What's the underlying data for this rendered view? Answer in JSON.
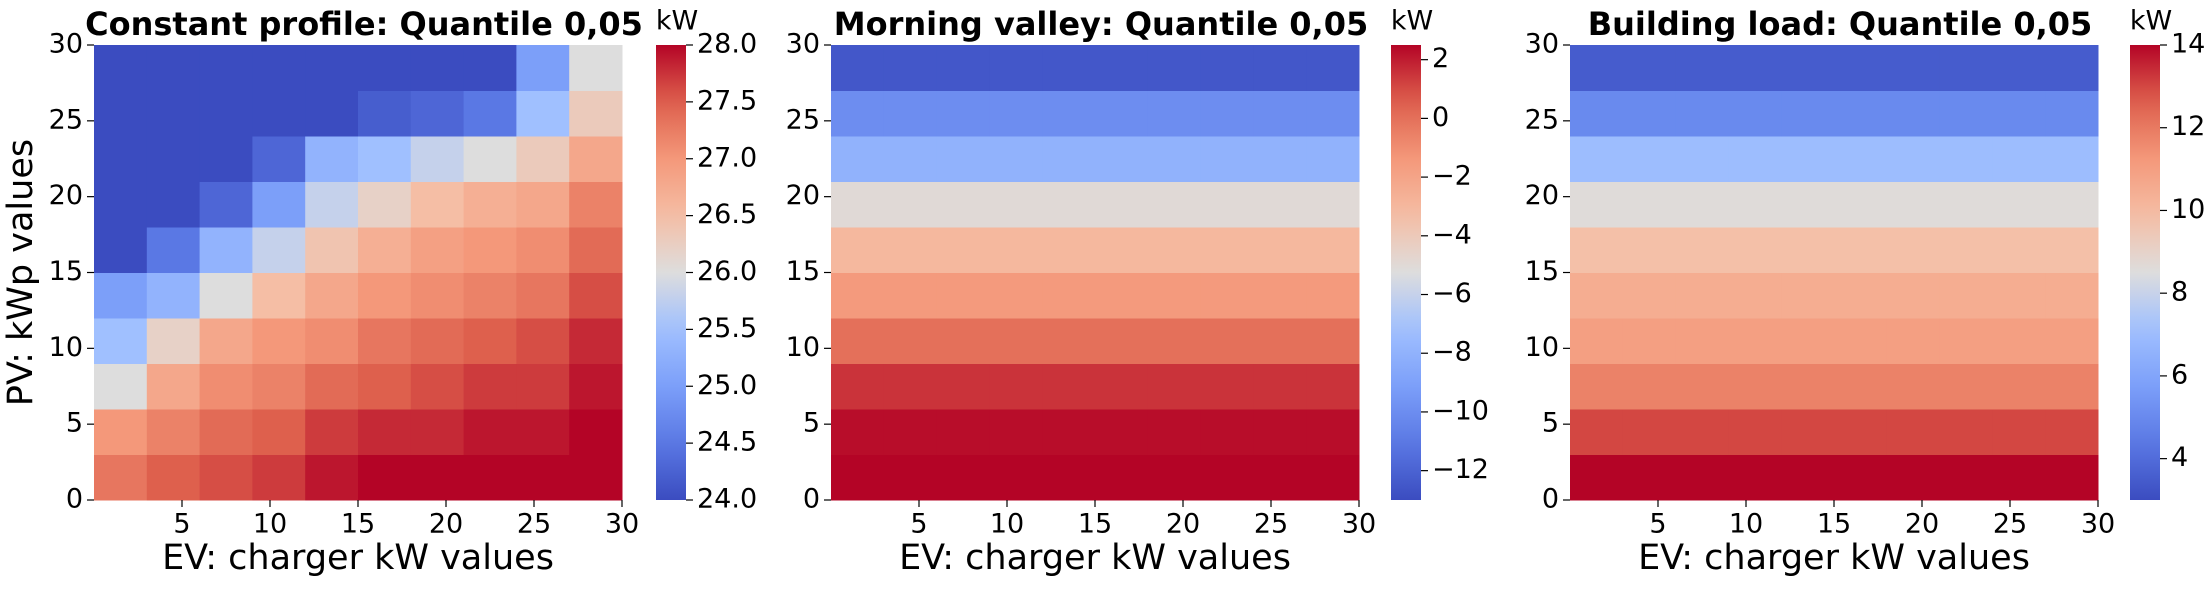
{
  "chart_data": [
    {
      "type": "heatmap",
      "title": "Constant profile: Quantile 0,05",
      "xlabel": "EV: charger kW values",
      "ylabel": "PV: kWp values",
      "cbar_label": "kW",
      "cmap": "coolwarm",
      "xlim": [
        0,
        30
      ],
      "xticks": [
        5,
        10,
        15,
        20,
        25,
        30
      ],
      "ylim": [
        0,
        30
      ],
      "yticks": [
        0,
        5,
        10,
        15,
        20,
        25,
        30
      ],
      "xbins": [
        0,
        3,
        6,
        9,
        12,
        15,
        18,
        21,
        24,
        27,
        30
      ],
      "ybins": [
        0,
        3,
        6,
        9,
        12,
        15,
        18,
        21,
        24,
        27,
        30
      ],
      "clim": [
        24,
        28
      ],
      "cticks": [
        {
          "value": 24,
          "label": "24.0"
        },
        24.5,
        {
          "value": 25,
          "label": "25.0"
        },
        25.5,
        {
          "value": 26,
          "label": "26.0"
        },
        26.5,
        {
          "value": 27,
          "label": "27.0"
        },
        27.5,
        {
          "value": 28,
          "label": "28.0"
        }
      ],
      "z": [
        [
          27.3,
          27.5,
          27.6,
          27.7,
          27.9,
          28,
          28,
          28,
          28,
          28
        ],
        [
          27.0,
          27.2,
          27.4,
          27.5,
          27.7,
          27.8,
          27.8,
          27.9,
          27.9,
          28
        ],
        [
          26.0,
          26.8,
          27.1,
          27.2,
          27.4,
          27.5,
          27.6,
          27.7,
          27.7,
          27.9
        ],
        [
          25.5,
          26.2,
          26.8,
          27.0,
          27.1,
          27.3,
          27.4,
          27.5,
          27.6,
          27.8
        ],
        [
          25.0,
          25.3,
          26.0,
          26.5,
          26.8,
          27.0,
          27.1,
          27.2,
          27.3,
          27.6
        ],
        [
          24.0,
          24.5,
          25.3,
          25.8,
          26.4,
          26.7,
          26.9,
          27.0,
          27.1,
          27.4
        ],
        [
          24,
          24,
          24.3,
          25.0,
          25.8,
          26.2,
          26.5,
          26.7,
          26.8,
          27.2
        ],
        [
          24,
          24,
          24,
          24.3,
          25.3,
          25.5,
          25.8,
          26.0,
          26.3,
          26.8
        ],
        [
          24,
          24,
          24,
          24,
          24,
          24.2,
          24.3,
          24.5,
          25.5,
          26.3
        ],
        [
          24,
          24,
          24,
          24,
          24,
          24,
          24,
          24,
          25.0,
          26.0
        ]
      ]
    },
    {
      "type": "heatmap",
      "title": "Morning valley: Quantile 0,05",
      "xlabel": "EV: charger kW values",
      "cbar_label": "kW",
      "cmap": "coolwarm",
      "xlim": [
        0,
        30
      ],
      "xticks": [
        5,
        10,
        15,
        20,
        25,
        30
      ],
      "ylim": [
        0,
        30
      ],
      "yticks": [
        0,
        5,
        10,
        15,
        20,
        25,
        30
      ],
      "xbins": [
        0,
        3,
        6,
        9,
        12,
        15,
        18,
        21,
        24,
        27,
        30
      ],
      "ybins": [
        0,
        3,
        6,
        9,
        12,
        15,
        18,
        21,
        24,
        27,
        30
      ],
      "clim": [
        -13,
        2.5
      ],
      "cticks": [
        {
          "value": -12,
          "label": "−12"
        },
        {
          "value": -10,
          "label": "−10"
        },
        {
          "value": -8,
          "label": "−8"
        },
        {
          "value": -6,
          "label": "−6"
        },
        {
          "value": -4,
          "label": "−4"
        },
        {
          "value": -2,
          "label": "−2"
        },
        0,
        2
      ],
      "z": [
        [
          2.5,
          2.5,
          2.5,
          2.5,
          2.5,
          2.5,
          2.5,
          2.5,
          2.5,
          2.5
        ],
        [
          2.3,
          2.3,
          2.3,
          2.3,
          2.3,
          2.3,
          2.3,
          2.3,
          2.3,
          2.3
        ],
        [
          1.5,
          1.5,
          1.5,
          1.5,
          1.5,
          1.5,
          1.5,
          1.5,
          1.5,
          1.5
        ],
        [
          0,
          0,
          0,
          0,
          0,
          0,
          0,
          0,
          0,
          0
        ],
        [
          -1.5,
          -1.5,
          -1.5,
          -1.5,
          -1.5,
          -1.5,
          -1.5,
          -1.5,
          -1.5,
          -1.5
        ],
        [
          -3,
          -3,
          -3,
          -3,
          -3,
          -3,
          -3,
          -3,
          -3,
          -3
        ],
        [
          -5,
          -5,
          -5,
          -5,
          -5,
          -5,
          -5,
          -5,
          -5,
          -5
        ],
        [
          -8,
          -8,
          -8,
          -8,
          -8,
          -8,
          -8,
          -8,
          -8,
          -8
        ],
        [
          -10,
          -10,
          -10,
          -10,
          -10,
          -10,
          -10,
          -10,
          -10,
          -10
        ],
        [
          -12.5,
          -12.5,
          -12.5,
          -12.5,
          -12.5,
          -12.5,
          -12.5,
          -12.5,
          -12.5,
          -12.5
        ]
      ]
    },
    {
      "type": "heatmap",
      "title": "Building load: Quantile 0,05",
      "xlabel": "EV: charger kW values",
      "cbar_label": "kW",
      "cmap": "coolwarm",
      "xlim": [
        0,
        30
      ],
      "xticks": [
        5,
        10,
        15,
        20,
        25,
        30
      ],
      "ylim": [
        0,
        30
      ],
      "yticks": [
        0,
        5,
        10,
        15,
        20,
        25,
        30
      ],
      "xbins": [
        0,
        3,
        6,
        9,
        12,
        15,
        18,
        21,
        24,
        27,
        30
      ],
      "ybins": [
        0,
        3,
        6,
        9,
        12,
        15,
        18,
        21,
        24,
        27,
        30
      ],
      "clim": [
        3,
        14
      ],
      "cticks": [
        4,
        6,
        8,
        10,
        12,
        14
      ],
      "z": [
        [
          14,
          14,
          14,
          14,
          14,
          14,
          14,
          14,
          14,
          14
        ],
        [
          13,
          13,
          13,
          13,
          13,
          13,
          13,
          13,
          13,
          13
        ],
        [
          11.8,
          11.8,
          11.8,
          11.8,
          11.8,
          11.8,
          11.8,
          11.8,
          11.8,
          11.8
        ],
        [
          11,
          11,
          11,
          11,
          11,
          11,
          11,
          11,
          11,
          11
        ],
        [
          10.5,
          10.5,
          10.5,
          10.5,
          10.5,
          10.5,
          10.5,
          10.5,
          10.5,
          10.5
        ],
        [
          9.8,
          9.8,
          9.8,
          9.8,
          9.8,
          9.8,
          9.8,
          9.8,
          9.8,
          9.8
        ],
        [
          8.6,
          8.6,
          8.6,
          8.6,
          8.6,
          8.6,
          8.6,
          8.6,
          8.6,
          8.6
        ],
        [
          7,
          7,
          7,
          7,
          7,
          7,
          7,
          7,
          7,
          7
        ],
        [
          5,
          5,
          5,
          5,
          5,
          5,
          5,
          5,
          5,
          5
        ],
        [
          3.5,
          3.5,
          3.5,
          3.5,
          3.5,
          3.5,
          3.5,
          3.5,
          3.5,
          3.5
        ]
      ]
    }
  ]
}
